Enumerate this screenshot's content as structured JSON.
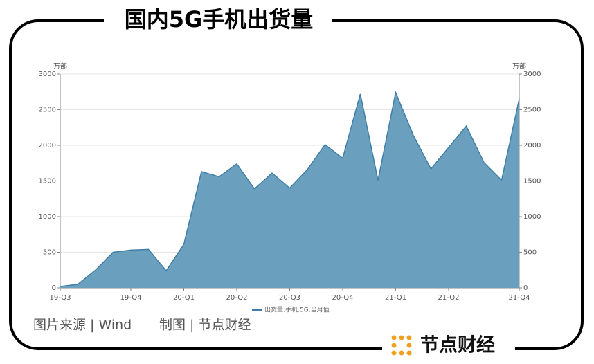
{
  "chart_data": {
    "type": "area",
    "title": "国内5G手机出货量",
    "y_unit": "万部",
    "y2_unit": "万部",
    "categories": [
      "19-Q3",
      null,
      null,
      null,
      "19-Q4",
      null,
      null,
      "20-Q1",
      null,
      null,
      "20-Q2",
      null,
      null,
      "20-Q3",
      null,
      null,
      "20-Q4",
      null,
      null,
      "21-Q1",
      null,
      null,
      "21-Q2",
      null,
      null,
      null,
      "21-Q4"
    ],
    "series": [
      {
        "name": "出货量:手机:5G:当月值",
        "color": "#6b9fbe",
        "line_color": "#3f7ea8",
        "values": [
          20,
          50,
          250,
          500,
          530,
          540,
          240,
          610,
          1630,
          1560,
          1740,
          1390,
          1610,
          1400,
          1660,
          2010,
          1820,
          2720,
          1510,
          2740,
          2140,
          1670,
          1970,
          2270,
          1760,
          1510,
          2650
        ]
      }
    ],
    "ylim": [
      0,
      3000
    ],
    "yticks": [
      0,
      500,
      1000,
      1500,
      2000,
      2500,
      3000
    ],
    "y2lim": [
      0,
      3000
    ],
    "y2ticks": [
      0,
      500,
      1000,
      1500,
      2000,
      2500,
      3000
    ],
    "grid": true,
    "legend": "bottom"
  },
  "source": "图片来源 | Wind",
  "credit": "制图 | 节点财经",
  "brand": "节点财经"
}
